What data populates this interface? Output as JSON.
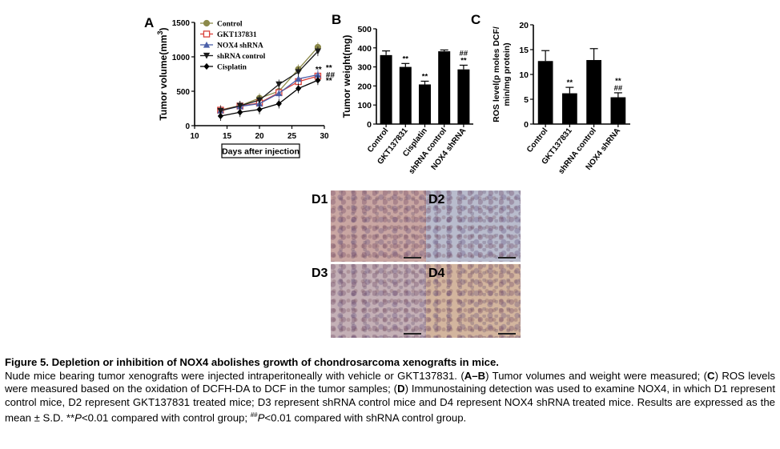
{
  "chart_data": [
    {
      "panel": "A",
      "type": "line",
      "title": "",
      "xlabel": "Days after injection",
      "ylabel": "Tumor volume(mm3)",
      "ylabel_base": "Tumor volume(mm",
      "ylabel_sup": "3",
      "ylabel_close": ")",
      "xlim": [
        10,
        30
      ],
      "ylim": [
        0,
        1500
      ],
      "xticks": [
        10,
        15,
        20,
        25,
        30
      ],
      "yticks": [
        0,
        500,
        1000,
        1500
      ],
      "x": [
        14,
        17,
        20,
        23,
        26,
        29
      ],
      "legend_position": "top-left",
      "series": [
        {
          "name": "Control",
          "marker": "circle",
          "color": "#8c8a4a",
          "values": [
            230,
            290,
            400,
            500,
            820,
            1140
          ]
        },
        {
          "name": "GKT137831",
          "marker": "square-open",
          "color": "#d9413a",
          "values": [
            225,
            285,
            330,
            480,
            640,
            720
          ]
        },
        {
          "name": "NOX4 shRNA",
          "marker": "triangle-up",
          "color": "#4a5fa8",
          "values": [
            220,
            280,
            320,
            470,
            680,
            740
          ]
        },
        {
          "name": "shRNA control",
          "marker": "triangle-down",
          "color": "#1a1a1a",
          "values": [
            215,
            290,
            370,
            600,
            780,
            1080
          ]
        },
        {
          "name": "Cisplatin",
          "marker": "diamond",
          "color": "#000000",
          "values": [
            140,
            195,
            235,
            320,
            540,
            660
          ]
        }
      ],
      "annotations": [
        "**",
        "**",
        "##",
        "**"
      ]
    },
    {
      "panel": "B",
      "type": "bar",
      "title": "",
      "xlabel": "",
      "ylabel": "Tumor weight(mg)",
      "ylim": [
        0,
        500
      ],
      "yticks": [
        0,
        100,
        200,
        300,
        400,
        500
      ],
      "categories": [
        "Control",
        "GKT137831",
        "Cisplatin",
        "shRNA control",
        "NOX4 shRNA"
      ],
      "values": [
        362,
        300,
        208,
        382,
        287
      ],
      "errors": [
        22,
        18,
        17,
        7,
        22
      ],
      "annotations": [
        "",
        "**",
        "**",
        "",
        "##\n**"
      ]
    },
    {
      "panel": "C",
      "type": "bar",
      "title": "",
      "xlabel": "",
      "ylabel": "ROS level(p moles DCF/ min/mg protein)",
      "ylabel_line1": "ROS level(p moles DCF/",
      "ylabel_line2": "min/mg protein)",
      "ylim": [
        0,
        20
      ],
      "yticks": [
        0,
        5,
        10,
        15,
        20
      ],
      "categories": [
        "Control",
        "GKT137831",
        "shRNA control",
        "NOX4 shRNA"
      ],
      "values": [
        12.7,
        6.2,
        12.9,
        5.4
      ],
      "errors": [
        2.1,
        1.2,
        2.3,
        0.9
      ],
      "annotations": [
        "",
        "**",
        "",
        "**\n##"
      ]
    }
  ],
  "panels": {
    "A": "A",
    "B": "B",
    "C": "C"
  },
  "micrographs": [
    {
      "label": "D1",
      "stain": "#c9a6a2"
    },
    {
      "label": "D2",
      "stain": "#b9bccd"
    },
    {
      "label": "D3",
      "stain": "#c4b0b6"
    },
    {
      "label": "D4",
      "stain": "#d3b59e"
    }
  ],
  "caption": {
    "title": "Figure 5. Depletion or inhibition of NOX4 abolishes growth of chondrosarcoma xenografts in mice.",
    "p1": "Nude mice bearing tumor xenografts were injected intraperitoneally with vehicle or GKT137831. (",
    "b1": "A–B",
    "p2": ") Tumor volumes and weight were measured; (",
    "b2": "C",
    "p3": ") ROS levels were measured based on the oxidation of DCFH-DA to DCF in the tumor samples; (",
    "b3": "D",
    "p4": ") Immunostaining detection was used to examine NOX4, in which D1 represent control mice, D2 represent GKT137831 treated mice; D3 represent shRNA control mice and D4 represent NOX4 shRNA treated mice. Results are expressed as the mean ± S.D. **",
    "i1": "P",
    "p5": "<0.01 compared with control group; ",
    "sup": "##",
    "i2": "P",
    "p6": "<0.01 compared with shRNA control group."
  }
}
